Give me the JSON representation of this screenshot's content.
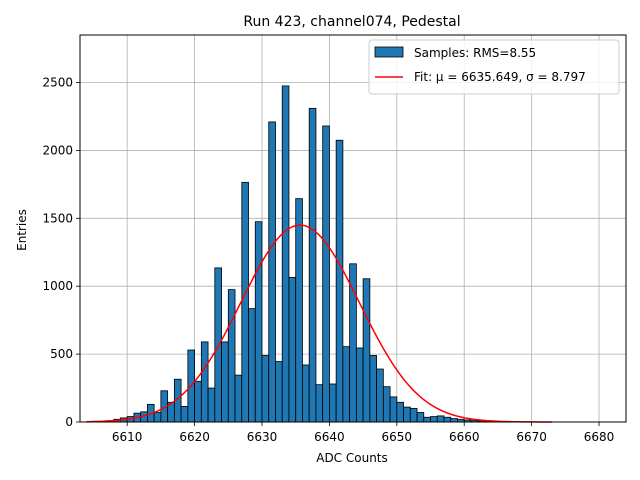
{
  "chart_data": {
    "type": "bar",
    "title": "Run 423, channel074, Pedestal",
    "xlabel": "ADC Counts",
    "ylabel": "Entries",
    "xlim": [
      6603,
      6684
    ],
    "ylim": [
      0,
      2850
    ],
    "xticks": [
      6610,
      6620,
      6630,
      6640,
      6650,
      6660,
      6670,
      6680
    ],
    "yticks": [
      0,
      500,
      1000,
      1500,
      2000,
      2500
    ],
    "grid": true,
    "legend_position": "top-right",
    "colors": {
      "bars": "#1f77b4",
      "bar_edge": "#000000",
      "fit": "#ff0000",
      "grid": "#b0b0b0"
    },
    "histogram": {
      "name": "Samples: RMS=8.55",
      "bin_start": 6604,
      "bin_width": 1,
      "counts": [
        3,
        5,
        5,
        10,
        20,
        30,
        40,
        65,
        75,
        130,
        70,
        230,
        145,
        315,
        115,
        530,
        300,
        590,
        250,
        1135,
        590,
        975,
        345,
        1765,
        835,
        1475,
        490,
        2210,
        445,
        2475,
        1065,
        1645,
        420,
        2310,
        275,
        2180,
        280,
        2075,
        555,
        1165,
        545,
        1055,
        490,
        390,
        260,
        185,
        145,
        110,
        100,
        70,
        35,
        40,
        45,
        35,
        25,
        20,
        15,
        10,
        8,
        5,
        3,
        2,
        2,
        1,
        1,
        1,
        0,
        0,
        0
      ]
    },
    "fit": {
      "name": "Fit: μ = 6635.649, σ = 8.797",
      "mu": 6635.649,
      "sigma": 8.797,
      "amplitude": 1450,
      "x_range": [
        6604,
        6673
      ]
    }
  }
}
